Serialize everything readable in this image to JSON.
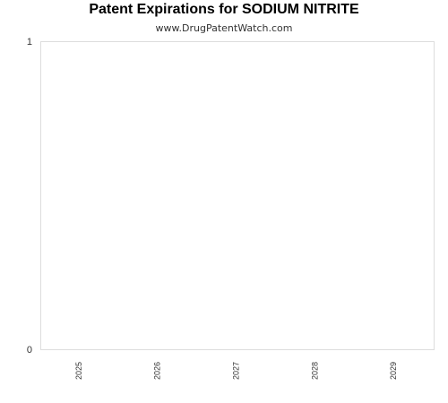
{
  "chart_data": {
    "type": "bar",
    "title": "Patent Expirations for SODIUM NITRITE",
    "subtitle": "www.DrugPatentWatch.com",
    "categories": [
      "2025",
      "2026",
      "2027",
      "2028",
      "2029"
    ],
    "values": [
      0,
      0,
      0,
      0,
      0
    ],
    "xlabel": "",
    "ylabel": "",
    "ylim": [
      0,
      1
    ],
    "yticks": [
      "0",
      "1"
    ],
    "grid": false,
    "legend": "none",
    "colors": {
      "frame": "#dddddd",
      "text": "#333333",
      "title": "#000000",
      "bar": "#4f81bd"
    }
  }
}
